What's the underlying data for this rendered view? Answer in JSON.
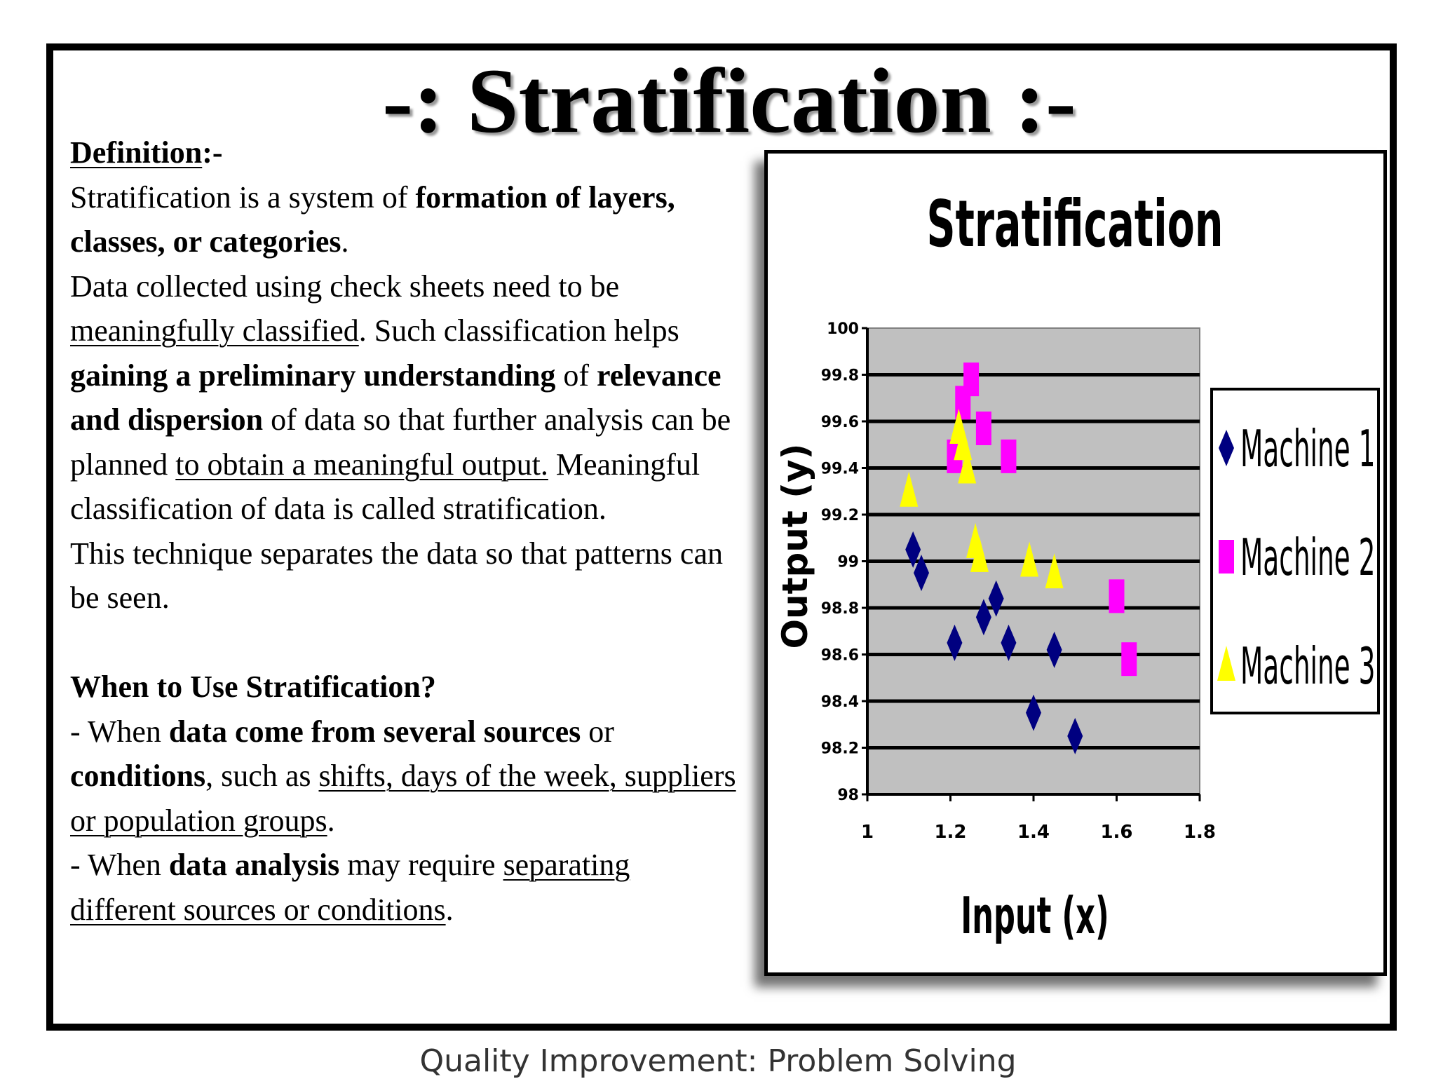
{
  "slide": {
    "title": "-: Stratification :-",
    "footer": "Quality Improvement: Problem Solving"
  },
  "definition": {
    "heading": "Definition",
    "heading_suffix": ":-",
    "p1": {
      "a": "Stratification is a system of ",
      "b": "formation of layers, classes, or categories",
      "c": "."
    },
    "p2": {
      "a": "Data collected using check sheets need to be ",
      "b": "meaningfully classified",
      "c": ". Such classification helps ",
      "d": "gaining a preliminary understanding",
      "e": " of ",
      "f": "relevance and dispersion",
      "g": " of data so that further analysis can be planned ",
      "h": "to obtain a meaningful output.",
      "i": " Meaningful classification of data is called stratification."
    },
    "p3": "This technique separates the data so that patterns can be seen."
  },
  "when_to_use": {
    "heading": "When to Use Stratification?",
    "item1": {
      "a": "- When ",
      "b": "data come from several sources",
      "c": " or ",
      "d": "conditions",
      "e": ", such as ",
      "f": "shifts, days of the week, suppliers or population groups",
      "g": "."
    },
    "item2": {
      "a": "- When ",
      "b": "data analysis",
      "c": " may require ",
      "d": "separating different sources or conditions",
      "e": "."
    }
  },
  "chart_data": {
    "type": "scatter",
    "title": "Stratification",
    "xlabel": "Input (x)",
    "ylabel": "Output (y)",
    "xlim": [
      1,
      1.8
    ],
    "ylim": [
      98,
      100
    ],
    "xticks": [
      1,
      1.2,
      1.4,
      1.6,
      1.8
    ],
    "xtick_labels": [
      "1",
      "1.2",
      "1.4",
      "1.6",
      "1.8"
    ],
    "yticks": [
      98,
      98.2,
      98.4,
      98.6,
      98.8,
      99,
      99.2,
      99.4,
      99.6,
      99.8,
      100
    ],
    "ytick_labels": [
      "98",
      "98.2",
      "98.4",
      "98.6",
      "98.8",
      "99",
      "99.2",
      "99.4",
      "99.6",
      "99.8",
      "100"
    ],
    "grid": "horizontal",
    "plot_background": "#c0c0c0",
    "legend_position": "right",
    "series": [
      {
        "name": "Machine 1",
        "marker": "diamond",
        "color": "#000080",
        "points": [
          [
            1.11,
            99.05
          ],
          [
            1.13,
            98.95
          ],
          [
            1.21,
            98.65
          ],
          [
            1.28,
            98.76
          ],
          [
            1.31,
            98.84
          ],
          [
            1.34,
            98.65
          ],
          [
            1.4,
            98.35
          ],
          [
            1.45,
            98.62
          ],
          [
            1.5,
            98.25
          ]
        ]
      },
      {
        "name": "Machine 2",
        "marker": "square",
        "color": "#ff00ff",
        "points": [
          [
            1.21,
            99.45
          ],
          [
            1.23,
            99.68
          ],
          [
            1.25,
            99.78
          ],
          [
            1.28,
            99.57
          ],
          [
            1.34,
            99.45
          ],
          [
            1.6,
            98.85
          ],
          [
            1.63,
            98.58
          ]
        ]
      },
      {
        "name": "Machine 3",
        "marker": "triangle",
        "color": "#ffff00",
        "points": [
          [
            1.1,
            99.3
          ],
          [
            1.22,
            99.57
          ],
          [
            1.23,
            99.5
          ],
          [
            1.24,
            99.4
          ],
          [
            1.26,
            99.08
          ],
          [
            1.27,
            99.02
          ],
          [
            1.39,
            99.0
          ],
          [
            1.45,
            98.95
          ]
        ]
      }
    ]
  }
}
